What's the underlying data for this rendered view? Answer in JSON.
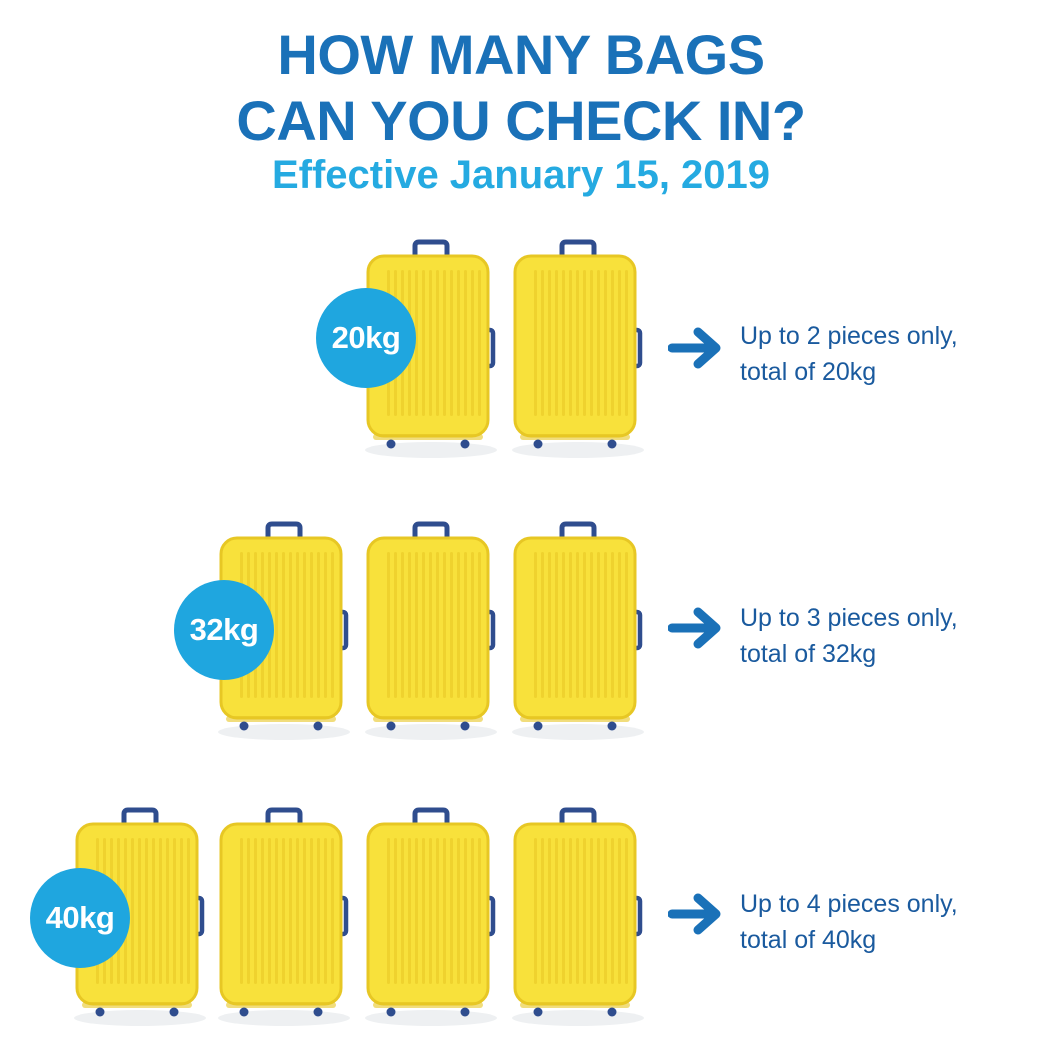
{
  "title_line1": "HOW MANY BAGS",
  "title_line2": "CAN YOU CHECK IN?",
  "subtitle": "Effective January 15, 2019",
  "colors": {
    "title": "#1a71b8",
    "subtitle": "#25aae1",
    "badge": "#1fa6df",
    "suitcase_body": "#f8e13b",
    "suitcase_outline": "#e7c724",
    "handle": "#2f4d8e",
    "arrow": "#1a71b8",
    "description": "#1a5a9e"
  },
  "tiers": [
    {
      "weight": "20kg",
      "pieces": 2,
      "line1": "Up to 2 pieces only,",
      "line2": "total of 20kg"
    },
    {
      "weight": "32kg",
      "pieces": 3,
      "line1": "Up to 3 pieces only,",
      "line2": "total of 32kg"
    },
    {
      "weight": "40kg",
      "pieces": 4,
      "line1": "Up to 4 pieces only,",
      "line2": "total of 40kg"
    }
  ],
  "icons": {
    "suitcase": "suitcase-icon",
    "arrow": "arrow-right-icon"
  }
}
